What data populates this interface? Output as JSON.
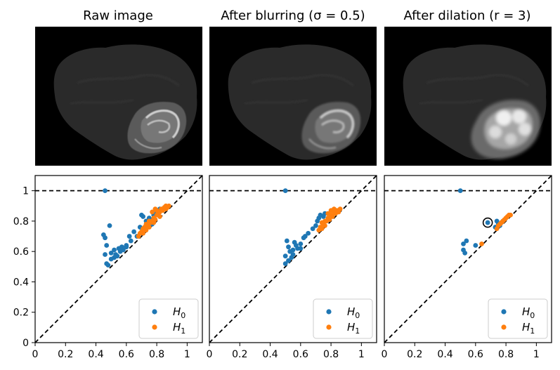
{
  "panels": [
    {
      "title": "Raw image",
      "image": "brain-mri-slice-raw",
      "variant": "raw"
    },
    {
      "title": "After blurring (σ = 0.5)",
      "image": "brain-mri-slice-blurred",
      "variant": "blur"
    },
    {
      "title": "After dilation (r = 3)",
      "image": "brain-mri-slice-dilated",
      "variant": "dilate"
    }
  ],
  "colors": {
    "H0": "#1f77b4",
    "H1": "#ff7f0e",
    "background": "#000000",
    "brain": "#2a2a2a"
  },
  "chart_data": [
    {
      "type": "scatter",
      "title": "",
      "xlim": [
        0,
        1.1
      ],
      "ylim": [
        0,
        1.1
      ],
      "xticks": [
        "0",
        "0.2",
        "0.4",
        "0.6",
        "0.8",
        "1"
      ],
      "yticks": [
        "0",
        "0.2",
        "0.4",
        "0.6",
        "0.8",
        "1"
      ],
      "infinity_line": 1.0,
      "diagonal": true,
      "legend": "bottom-right",
      "series": [
        {
          "name": "H0",
          "label_base": "H",
          "label_sub": "0",
          "color": "#1f77b4",
          "points": [
            [
              0.46,
              1.0
            ],
            [
              0.45,
              0.71
            ],
            [
              0.46,
              0.69
            ],
            [
              0.47,
              0.64
            ],
            [
              0.49,
              0.77
            ],
            [
              0.46,
              0.58
            ],
            [
              0.47,
              0.52
            ],
            [
              0.48,
              0.51
            ],
            [
              0.5,
              0.55
            ],
            [
              0.5,
              0.59
            ],
            [
              0.52,
              0.56
            ],
            [
              0.53,
              0.58
            ],
            [
              0.55,
              0.62
            ],
            [
              0.56,
              0.6
            ],
            [
              0.57,
              0.63
            ],
            [
              0.6,
              0.64
            ],
            [
              0.62,
              0.7
            ],
            [
              0.63,
              0.67
            ],
            [
              0.65,
              0.73
            ],
            [
              0.67,
              0.7
            ],
            [
              0.69,
              0.76
            ],
            [
              0.7,
              0.84
            ],
            [
              0.71,
              0.83
            ],
            [
              0.73,
              0.8
            ],
            [
              0.75,
              0.82
            ],
            [
              0.77,
              0.78
            ],
            [
              0.78,
              0.84
            ],
            [
              0.8,
              0.86
            ],
            [
              0.82,
              0.88
            ],
            [
              0.52,
              0.61
            ],
            [
              0.54,
              0.57
            ],
            [
              0.58,
              0.61
            ],
            [
              0.6,
              0.63
            ]
          ]
        },
        {
          "name": "H1",
          "label_base": "H",
          "label_sub": "1",
          "color": "#ff7f0e",
          "points": [
            [
              0.7,
              0.73
            ],
            [
              0.71,
              0.75
            ],
            [
              0.72,
              0.76
            ],
            [
              0.73,
              0.74
            ],
            [
              0.74,
              0.77
            ],
            [
              0.75,
              0.76
            ],
            [
              0.76,
              0.79
            ],
            [
              0.77,
              0.8
            ],
            [
              0.78,
              0.79
            ],
            [
              0.78,
              0.82
            ],
            [
              0.79,
              0.81
            ],
            [
              0.8,
              0.84
            ],
            [
              0.8,
              0.87
            ],
            [
              0.81,
              0.85
            ],
            [
              0.82,
              0.86
            ],
            [
              0.82,
              0.83
            ],
            [
              0.83,
              0.88
            ],
            [
              0.84,
              0.87
            ],
            [
              0.85,
              0.89
            ],
            [
              0.86,
              0.88
            ],
            [
              0.86,
              0.9
            ],
            [
              0.87,
              0.89
            ],
            [
              0.88,
              0.9
            ],
            [
              0.79,
              0.88
            ],
            [
              0.77,
              0.86
            ],
            [
              0.75,
              0.8
            ],
            [
              0.73,
              0.78
            ],
            [
              0.69,
              0.72
            ],
            [
              0.68,
              0.7
            ],
            [
              0.71,
              0.72
            ]
          ]
        }
      ]
    },
    {
      "type": "scatter",
      "title": "",
      "xlim": [
        0,
        1.1
      ],
      "ylim": [
        0,
        1.1
      ],
      "xticks": [
        "0",
        "0.2",
        "0.4",
        "0.6",
        "0.8",
        "1"
      ],
      "infinity_line": 1.0,
      "diagonal": true,
      "legend": "bottom-right",
      "series": [
        {
          "name": "H0",
          "label_base": "H",
          "label_sub": "0",
          "color": "#1f77b4",
          "points": [
            [
              0.5,
              1.0
            ],
            [
              0.5,
              0.57
            ],
            [
              0.51,
              0.67
            ],
            [
              0.52,
              0.63
            ],
            [
              0.52,
              0.54
            ],
            [
              0.53,
              0.6
            ],
            [
              0.54,
              0.56
            ],
            [
              0.55,
              0.61
            ],
            [
              0.56,
              0.66
            ],
            [
              0.57,
              0.64
            ],
            [
              0.58,
              0.62
            ],
            [
              0.6,
              0.65
            ],
            [
              0.62,
              0.69
            ],
            [
              0.63,
              0.7
            ],
            [
              0.65,
              0.72
            ],
            [
              0.68,
              0.75
            ],
            [
              0.7,
              0.77
            ],
            [
              0.71,
              0.8
            ],
            [
              0.72,
              0.82
            ],
            [
              0.73,
              0.84
            ],
            [
              0.75,
              0.83
            ],
            [
              0.76,
              0.85
            ],
            [
              0.5,
              0.52
            ],
            [
              0.55,
              0.58
            ],
            [
              0.6,
              0.62
            ]
          ]
        },
        {
          "name": "H1",
          "label_base": "H",
          "label_sub": "1",
          "color": "#ff7f0e",
          "points": [
            [
              0.72,
              0.74
            ],
            [
              0.73,
              0.76
            ],
            [
              0.74,
              0.75
            ],
            [
              0.75,
              0.78
            ],
            [
              0.76,
              0.77
            ],
            [
              0.77,
              0.8
            ],
            [
              0.78,
              0.82
            ],
            [
              0.79,
              0.81
            ],
            [
              0.8,
              0.84
            ],
            [
              0.81,
              0.83
            ],
            [
              0.82,
              0.86
            ],
            [
              0.83,
              0.85
            ],
            [
              0.84,
              0.87
            ],
            [
              0.85,
              0.86
            ],
            [
              0.86,
              0.88
            ],
            [
              0.8,
              0.87
            ],
            [
              0.78,
              0.85
            ],
            [
              0.76,
              0.8
            ],
            [
              0.74,
              0.79
            ],
            [
              0.82,
              0.88
            ]
          ]
        }
      ]
    },
    {
      "type": "scatter",
      "title": "",
      "xlim": [
        0,
        1.1
      ],
      "ylim": [
        0,
        1.1
      ],
      "xticks": [
        "0",
        "0.2",
        "0.4",
        "0.6",
        "0.8",
        "1"
      ],
      "infinity_line": 1.0,
      "diagonal": true,
      "legend": "bottom-right",
      "highlight": [
        0.68,
        0.79
      ],
      "series": [
        {
          "name": "H0",
          "label_base": "H",
          "label_sub": "0",
          "color": "#1f77b4",
          "points": [
            [
              0.5,
              1.0
            ],
            [
              0.52,
              0.65
            ],
            [
              0.54,
              0.67
            ],
            [
              0.52,
              0.61
            ],
            [
              0.53,
              0.59
            ],
            [
              0.6,
              0.64
            ],
            [
              0.68,
              0.79
            ],
            [
              0.73,
              0.76
            ],
            [
              0.74,
              0.8
            ],
            [
              0.75,
              0.78
            ],
            [
              0.76,
              0.77
            ],
            [
              0.77,
              0.79
            ],
            [
              0.78,
              0.8
            ]
          ]
        },
        {
          "name": "H1",
          "label_base": "H",
          "label_sub": "1",
          "color": "#ff7f0e",
          "points": [
            [
              0.64,
              0.65
            ],
            [
              0.74,
              0.75
            ],
            [
              0.76,
              0.78
            ],
            [
              0.77,
              0.79
            ],
            [
              0.78,
              0.8
            ],
            [
              0.79,
              0.81
            ],
            [
              0.8,
              0.82
            ],
            [
              0.81,
              0.83
            ],
            [
              0.82,
              0.84
            ],
            [
              0.83,
              0.84
            ],
            [
              0.75,
              0.77
            ]
          ]
        }
      ]
    }
  ]
}
